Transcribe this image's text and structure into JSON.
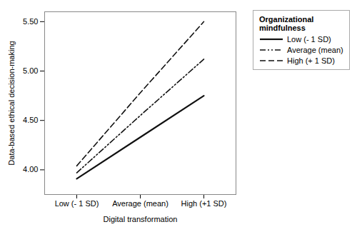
{
  "chart_data": {
    "type": "line",
    "categories": [
      "Low (- 1 SD)",
      "Average (mean)",
      "High (+1 SD)"
    ],
    "xlabel": "Digital transformation",
    "ylabel": "Data-based ethical decision-making",
    "ylim": [
      3.75,
      5.6
    ],
    "yticks": [
      {
        "value": 4.0,
        "label": "4.00"
      },
      {
        "value": 4.5,
        "label": "4.50"
      },
      {
        "value": 5.0,
        "label": "5.00"
      },
      {
        "value": 5.5,
        "label": "5.50"
      }
    ],
    "series": [
      {
        "name": "Low (- 1 SD)",
        "color": "#111111",
        "line_style": "solid",
        "values": [
          3.91,
          4.33,
          4.75
        ]
      },
      {
        "name": "Average (mean)",
        "color": "#111111",
        "line_style": "dashdotdot",
        "values": [
          3.97,
          4.55,
          5.12
        ]
      },
      {
        "name": "High (+ 1 SD)",
        "color": "#111111",
        "line_style": "dashed",
        "values": [
          4.04,
          4.78,
          5.5
        ]
      }
    ],
    "legend_title": "Organizational\nmindfulness",
    "legend": "right",
    "grid": false
  }
}
